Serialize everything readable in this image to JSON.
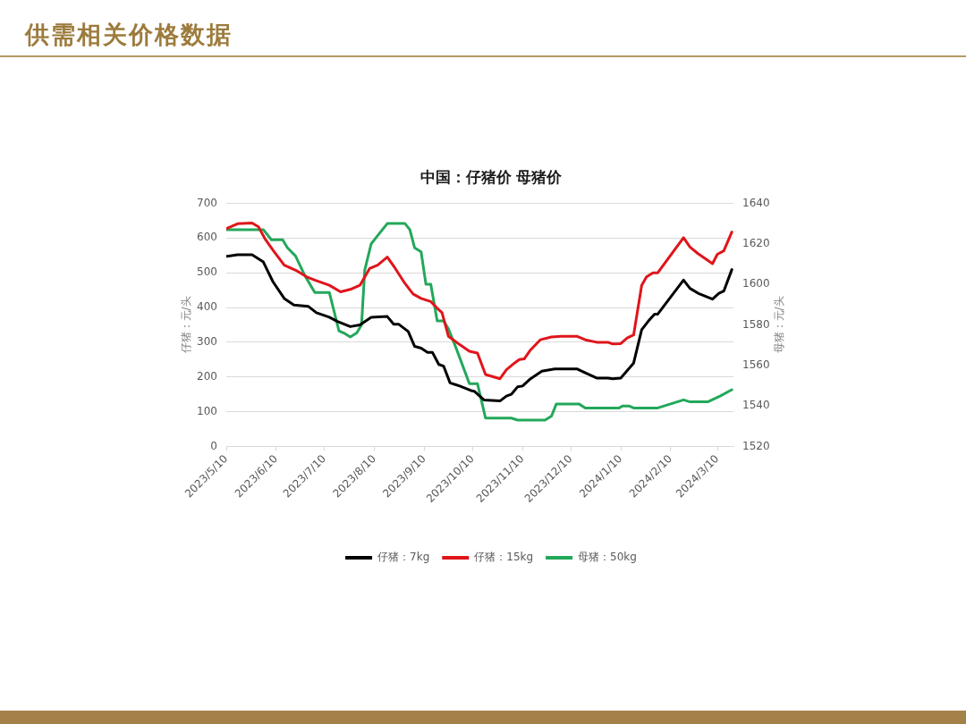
{
  "chart_data": {
    "type": "line",
    "title": "中国：仔猪价 母猪价",
    "ylabel": "仔猪：元/头",
    "y2label": "母猪：元/头",
    "annotations": [
      "供需相关价格数据"
    ],
    "series": [
      {
        "name": "仔猪：7kg",
        "color": "#000000",
        "x": [
          "2023-05-10",
          "2023-05-17",
          "2023-05-26",
          "2023-06-02",
          "2023-06-08",
          "2023-06-15",
          "2023-06-21",
          "2023-06-30",
          "2023-07-05",
          "2023-07-13",
          "2023-07-18",
          "2023-07-26",
          "2023-08-01",
          "2023-08-08",
          "2023-08-18",
          "2023-08-22",
          "2023-08-25",
          "2023-08-31",
          "2023-09-04",
          "2023-09-08",
          "2023-09-12",
          "2023-09-15",
          "2023-09-19",
          "2023-09-22",
          "2023-09-26",
          "2023-10-02",
          "2023-10-09",
          "2023-10-11",
          "2023-10-17",
          "2023-10-27",
          "2023-10-31",
          "2023-11-03",
          "2023-11-07",
          "2023-11-10",
          "2023-11-15",
          "2023-11-22",
          "2023-11-30",
          "2023-12-14",
          "2023-12-19",
          "2023-12-26",
          "2024-01-02",
          "2024-01-05",
          "2024-01-10",
          "2024-01-18",
          "2024-01-23",
          "2024-01-27",
          "2024-01-31",
          "2024-02-02",
          "2024-02-18",
          "2024-02-22",
          "2024-02-27",
          "2024-03-07",
          "2024-03-11",
          "2024-03-14",
          "2024-03-19"
        ],
        "values": [
          547,
          552,
          552,
          531,
          474,
          426,
          407,
          403,
          385,
          372,
          360,
          345,
          350,
          372,
          374,
          352,
          352,
          331,
          288,
          283,
          271,
          271,
          236,
          231,
          183,
          174,
          161,
          159,
          134,
          131,
          145,
          150,
          172,
          174,
          195,
          217,
          223,
          223,
          212,
          197,
          197,
          195,
          197,
          240,
          336,
          360,
          381,
          381,
          479,
          455,
          441,
          424,
          441,
          447,
          509
        ]
      },
      {
        "name": "仔猪：15kg",
        "color": "#e0151b",
        "x": [
          "2023-05-10",
          "2023-05-17",
          "2023-05-26",
          "2023-05-30",
          "2023-06-03",
          "2023-06-08",
          "2023-06-15",
          "2023-06-23",
          "2023-06-29",
          "2023-07-04",
          "2023-07-13",
          "2023-07-20",
          "2023-07-26",
          "2023-08-01",
          "2023-08-07",
          "2023-08-12",
          "2023-08-18",
          "2023-08-23",
          "2023-08-29",
          "2023-09-03",
          "2023-09-08",
          "2023-09-14",
          "2023-09-18",
          "2023-09-21",
          "2023-09-25",
          "2023-10-02",
          "2023-10-08",
          "2023-10-13",
          "2023-10-18",
          "2023-10-27",
          "2023-10-31",
          "2023-11-05",
          "2023-11-08",
          "2023-11-11",
          "2023-11-15",
          "2023-11-21",
          "2023-11-28",
          "2023-12-04",
          "2023-12-14",
          "2023-12-19",
          "2023-12-26",
          "2024-01-02",
          "2024-01-05",
          "2024-01-10",
          "2024-01-14",
          "2024-01-18",
          "2024-01-23",
          "2024-01-26",
          "2024-01-30",
          "2024-02-02",
          "2024-02-18",
          "2024-02-22",
          "2024-02-27",
          "2024-03-07",
          "2024-03-10",
          "2024-03-14",
          "2024-03-19"
        ],
        "values": [
          627,
          641,
          643,
          632,
          598,
          565,
          522,
          505,
          488,
          479,
          464,
          445,
          452,
          464,
          512,
          522,
          545,
          512,
          469,
          439,
          426,
          417,
          398,
          385,
          317,
          293,
          274,
          269,
          207,
          195,
          221,
          240,
          250,
          252,
          278,
          307,
          315,
          317,
          317,
          307,
          300,
          300,
          295,
          296,
          312,
          321,
          464,
          488,
          500,
          500,
          601,
          574,
          555,
          526,
          553,
          563,
          617
        ]
      },
      {
        "name": "母猪：50kg",
        "color": "#22a85a",
        "axis": "y2",
        "x": [
          "2023-05-10",
          "2023-06-02",
          "2023-06-07",
          "2023-06-14",
          "2023-06-17",
          "2023-06-22",
          "2023-06-28",
          "2023-07-04",
          "2023-07-13",
          "2023-07-19",
          "2023-07-22",
          "2023-07-26",
          "2023-07-30",
          "2023-08-02",
          "2023-08-04",
          "2023-08-08",
          "2023-08-12",
          "2023-08-18",
          "2023-08-29",
          "2023-09-01",
          "2023-09-04",
          "2023-09-08",
          "2023-09-11",
          "2023-09-14",
          "2023-09-18",
          "2023-09-22",
          "2023-09-25",
          "2023-09-30",
          "2023-10-08",
          "2023-10-13",
          "2023-10-18",
          "2023-11-03",
          "2023-11-07",
          "2023-11-24",
          "2023-11-28",
          "2023-12-01",
          "2023-12-15",
          "2023-12-19",
          "2024-01-09",
          "2024-01-11",
          "2024-01-15",
          "2024-01-18",
          "2024-02-02",
          "2024-02-18",
          "2024-02-22",
          "2024-03-04",
          "2024-03-12",
          "2024-03-19"
        ],
        "values": [
          1627,
          1627,
          1622,
          1622,
          1618,
          1614,
          1604,
          1596,
          1596,
          1577,
          1576,
          1574,
          1576,
          1580,
          1607,
          1620,
          1624,
          1630,
          1630,
          1627,
          1618,
          1616,
          1600,
          1600,
          1582,
          1582,
          1578,
          1568,
          1551,
          1551,
          1534,
          1534,
          1533,
          1533,
          1535,
          1541,
          1541,
          1539,
          1539,
          1540,
          1540,
          1539,
          1539,
          1543,
          1542,
          1542,
          1545,
          1548
        ]
      }
    ],
    "xlim": [
      "2023-05-10",
      "2024-03-20"
    ],
    "xticks": [
      {
        "value": "2023-05-10",
        "label": "2023/5/10"
      },
      {
        "value": "2023-06-10",
        "label": "2023/6/10"
      },
      {
        "value": "2023-07-10",
        "label": "2023/7/10"
      },
      {
        "value": "2023-08-10",
        "label": "2023/8/10"
      },
      {
        "value": "2023-09-10",
        "label": "2023/9/10"
      },
      {
        "value": "2023-10-10",
        "label": "2023/10/10"
      },
      {
        "value": "2023-11-10",
        "label": "2023/11/10"
      },
      {
        "value": "2023-12-10",
        "label": "2023/12/10"
      },
      {
        "value": "2024-01-10",
        "label": "2024/1/10"
      },
      {
        "value": "2024-02-10",
        "label": "2024/2/10"
      },
      {
        "value": "2024-03-10",
        "label": "2024/3/10"
      }
    ],
    "ylim": [
      0,
      700
    ],
    "yticks": [
      0,
      100,
      200,
      300,
      400,
      500,
      600,
      700
    ],
    "y2lim": [
      1520,
      1640
    ],
    "y2ticks": [
      1520,
      1540,
      1560,
      1580,
      1600,
      1620,
      1640
    ],
    "grid": "y",
    "legend": "bottom",
    "marker": "none",
    "line_style": "solid"
  }
}
